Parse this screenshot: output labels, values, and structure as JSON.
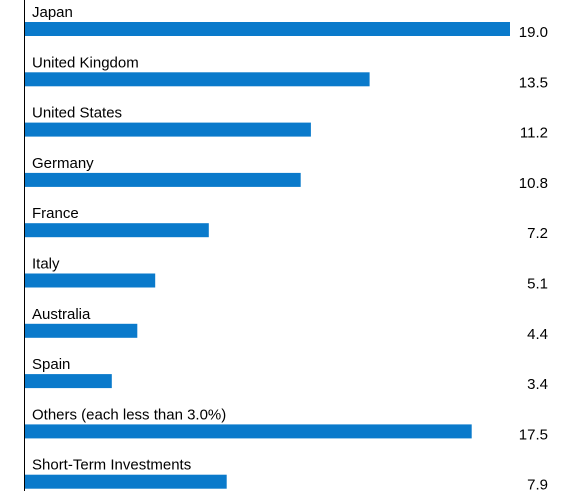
{
  "chart_data": {
    "type": "bar",
    "orientation": "horizontal",
    "categories": [
      "Japan",
      "United Kingdom",
      "United States",
      "Germany",
      "France",
      "Italy",
      "Australia",
      "Spain",
      "Others (each less than 3.0%)",
      "Short-Term Investments"
    ],
    "values": [
      19.0,
      13.5,
      11.2,
      10.8,
      7.2,
      5.1,
      4.4,
      3.4,
      17.5,
      7.9
    ],
    "value_labels": [
      "19.0",
      "13.5",
      "11.2",
      "10.8",
      "7.2",
      "5.1",
      "4.4",
      "3.4",
      "17.5",
      "7.9"
    ],
    "xlim": [
      0,
      19.0
    ],
    "bar_color": "#0a7acb",
    "axis_color": "#000000",
    "grid": false,
    "legend": "none"
  }
}
